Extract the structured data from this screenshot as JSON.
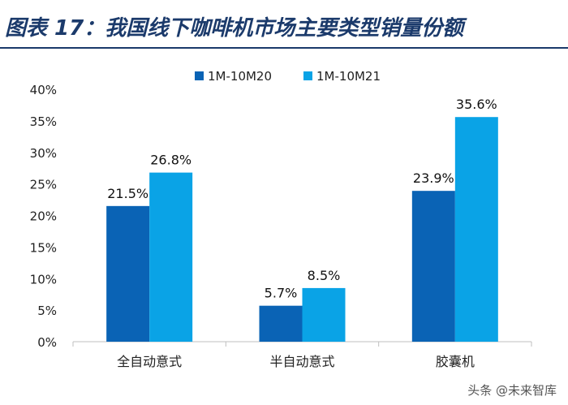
{
  "header": {
    "title": "图表 17：我国线下咖啡机市场主要类型销量份额"
  },
  "watermark": "头条 @未来智库",
  "colors": {
    "series_1": "#0a63b5",
    "series_2": "#0aa3e6",
    "title": "#1b3a6b"
  },
  "chart_data": {
    "type": "bar",
    "categories": [
      "全自动意式",
      "半自动意式",
      "胶囊机"
    ],
    "series": [
      {
        "name": "1M-10M20",
        "values": [
          21.5,
          5.7,
          23.9
        ],
        "labels": [
          "21.5%",
          "5.7%",
          "23.9%"
        ]
      },
      {
        "name": "1M-10M21",
        "values": [
          26.8,
          8.5,
          35.6
        ],
        "labels": [
          "26.8%",
          "8.5%",
          "35.6%"
        ]
      }
    ],
    "ylim": [
      0,
      40
    ],
    "yticks": [
      "0%",
      "5%",
      "10%",
      "15%",
      "20%",
      "25%",
      "30%",
      "35%",
      "40%"
    ],
    "ytick_values": [
      0,
      5,
      10,
      15,
      20,
      25,
      30,
      35,
      40
    ],
    "grid": false,
    "legend_position": "top-center"
  }
}
